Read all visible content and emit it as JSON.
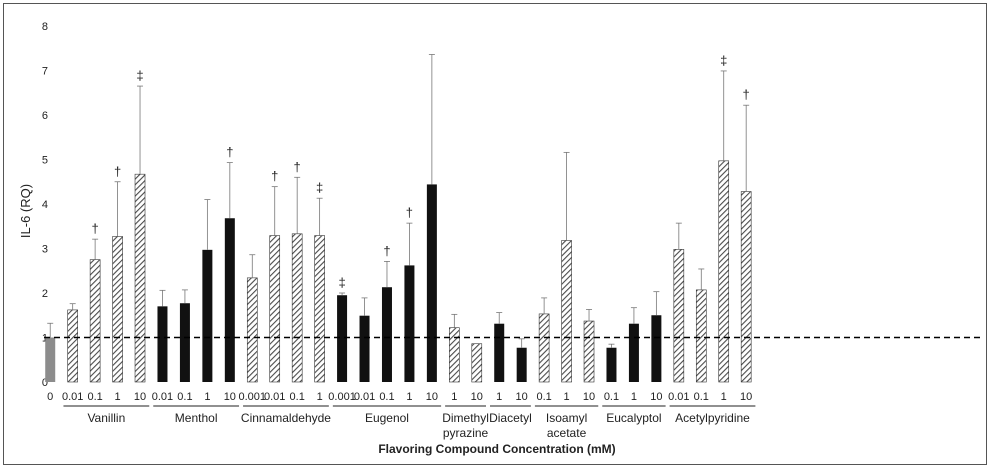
{
  "chart_data": {
    "type": "bar",
    "title": "",
    "xlabel": "Flavoring Compound Concentration (mM)",
    "ylabel": "IL-6 (RQ)",
    "ylim": [
      0,
      8
    ],
    "yticks": [
      "0",
      "1",
      "2",
      "3",
      "4",
      "5",
      "6",
      "7",
      "8"
    ],
    "grid": false,
    "legend": "none",
    "reference_line": {
      "y": 1,
      "style": "dashed"
    },
    "colors": {
      "control": "#8c8c8c",
      "solid": "#111111",
      "hatched": "#555555",
      "errorbar": "#777777"
    },
    "groups": [
      {
        "name": "",
        "bars": [
          {
            "x": "0",
            "value": 1.0,
            "error": 0.32,
            "style": "control",
            "mark": ""
          }
        ]
      },
      {
        "name": "Vanillin",
        "bars": [
          {
            "x": "0.01",
            "value": 1.62,
            "error": 0.14,
            "style": "hatched",
            "mark": ""
          },
          {
            "x": "0.1",
            "value": 2.75,
            "error": 0.46,
            "style": "hatched",
            "mark": "†"
          },
          {
            "x": "1",
            "value": 3.27,
            "error": 1.23,
            "style": "hatched",
            "mark": "†"
          },
          {
            "x": "10",
            "value": 4.67,
            "error": 1.98,
            "style": "hatched",
            "mark": "‡"
          }
        ]
      },
      {
        "name": "Menthol",
        "bars": [
          {
            "x": "0.01",
            "value": 1.7,
            "error": 0.36,
            "style": "solid",
            "mark": ""
          },
          {
            "x": "0.1",
            "value": 1.77,
            "error": 0.3,
            "style": "solid",
            "mark": ""
          },
          {
            "x": "1",
            "value": 2.97,
            "error": 1.13,
            "style": "solid",
            "mark": ""
          },
          {
            "x": "10",
            "value": 3.68,
            "error": 1.25,
            "style": "solid",
            "mark": "†"
          }
        ]
      },
      {
        "name": "Cinnamaldehyde",
        "bars": [
          {
            "x": "0.001",
            "value": 2.34,
            "error": 0.52,
            "style": "hatched",
            "mark": ""
          },
          {
            "x": "0.01",
            "value": 3.29,
            "error": 1.1,
            "style": "hatched",
            "mark": "†"
          },
          {
            "x": "0.1",
            "value": 3.33,
            "error": 1.27,
            "style": "hatched",
            "mark": "†"
          },
          {
            "x": "1",
            "value": 3.29,
            "error": 0.84,
            "style": "hatched",
            "mark": "‡"
          }
        ]
      },
      {
        "name": "Eugenol",
        "bars": [
          {
            "x": "0.001",
            "value": 1.95,
            "error": 0.05,
            "style": "solid",
            "mark": "‡"
          },
          {
            "x": "0.01",
            "value": 1.49,
            "error": 0.4,
            "style": "solid",
            "mark": ""
          },
          {
            "x": "0.1",
            "value": 2.13,
            "error": 0.58,
            "style": "solid",
            "mark": "†"
          },
          {
            "x": "1",
            "value": 2.62,
            "error": 0.95,
            "style": "solid",
            "mark": "†"
          },
          {
            "x": "10",
            "value": 4.44,
            "error": 2.92,
            "style": "solid",
            "mark": ""
          }
        ]
      },
      {
        "name": "Dimethyl pyrazine",
        "name_lines": [
          "Dimethyl",
          "pyrazine"
        ],
        "bars": [
          {
            "x": "1",
            "value": 1.22,
            "error": 0.3,
            "style": "hatched",
            "mark": ""
          },
          {
            "x": "10",
            "value": 0.86,
            "error": 0.0,
            "style": "hatched",
            "mark": ""
          }
        ]
      },
      {
        "name": "Diacetyl",
        "bars": [
          {
            "x": "1",
            "value": 1.31,
            "error": 0.25,
            "style": "solid",
            "mark": ""
          },
          {
            "x": "10",
            "value": 0.77,
            "error": 0.2,
            "style": "solid",
            "mark": ""
          }
        ]
      },
      {
        "name": "Isoamyl acetate",
        "name_lines": [
          "Isoamyl",
          "acetate"
        ],
        "bars": [
          {
            "x": "0.1",
            "value": 1.53,
            "error": 0.36,
            "style": "hatched",
            "mark": ""
          },
          {
            "x": "1",
            "value": 3.18,
            "error": 1.98,
            "style": "hatched",
            "mark": ""
          },
          {
            "x": "10",
            "value": 1.37,
            "error": 0.26,
            "style": "hatched",
            "mark": ""
          }
        ]
      },
      {
        "name": "Eucalyptol",
        "bars": [
          {
            "x": "0.1",
            "value": 0.77,
            "error": 0.08,
            "style": "solid",
            "mark": ""
          },
          {
            "x": "1",
            "value": 1.31,
            "error": 0.36,
            "style": "solid",
            "mark": ""
          },
          {
            "x": "10",
            "value": 1.5,
            "error": 0.53,
            "style": "solid",
            "mark": ""
          }
        ]
      },
      {
        "name": "Acetylpyridine",
        "bars": [
          {
            "x": "0.01",
            "value": 2.98,
            "error": 0.59,
            "style": "hatched",
            "mark": ""
          },
          {
            "x": "0.1",
            "value": 2.07,
            "error": 0.47,
            "style": "hatched",
            "mark": ""
          },
          {
            "x": "1",
            "value": 4.97,
            "error": 2.02,
            "style": "hatched",
            "mark": "‡"
          },
          {
            "x": "10",
            "value": 4.28,
            "error": 1.94,
            "style": "hatched",
            "mark": "†"
          }
        ]
      }
    ]
  }
}
